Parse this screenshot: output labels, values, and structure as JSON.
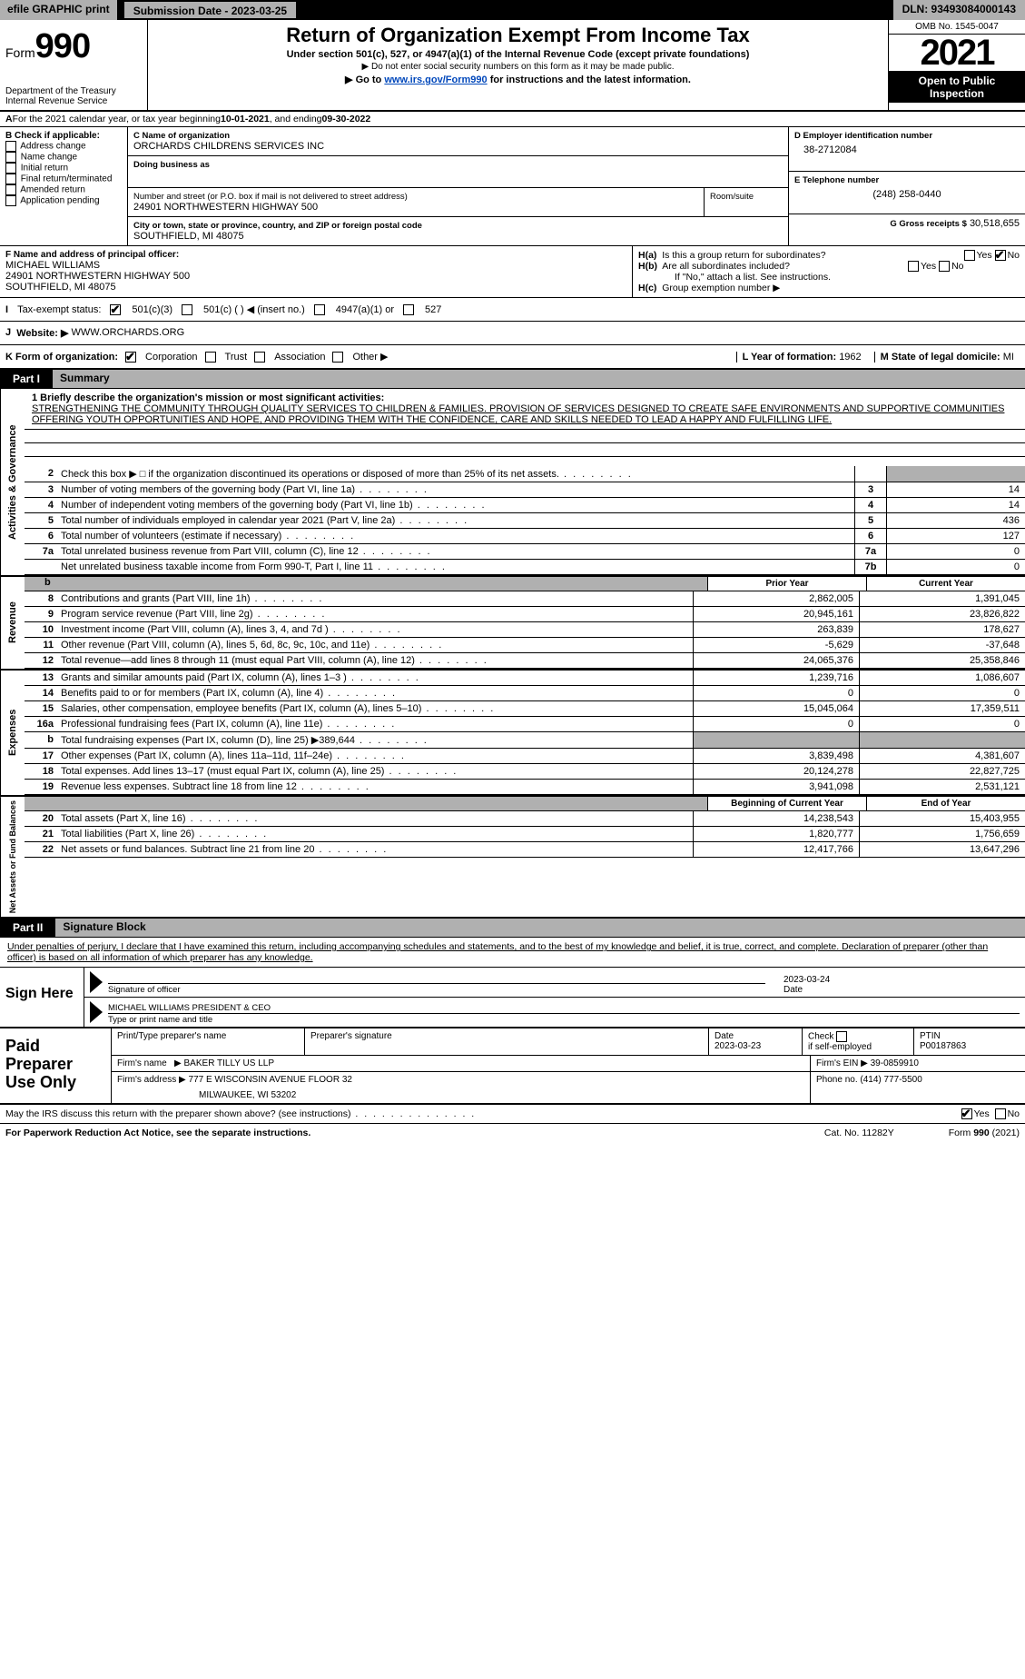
{
  "topbar": {
    "efile": "efile GRAPHIC print",
    "submit": "Submission Date - 2023-03-25",
    "dln": "DLN: 93493084000143"
  },
  "header": {
    "form_prefix": "Form",
    "form_number": "990",
    "title": "Return of Organization Exempt From Income Tax",
    "sub1_a": "Under section 501(c), 527, or 4947(a)(1) of the Internal Revenue Code (except private foundations)",
    "sub2": "▶ Do not enter social security numbers on this form as it may be made public.",
    "sub3_pre": "▶ Go to ",
    "sub3_link": "www.irs.gov/Form990",
    "sub3_post": " for instructions and the latest information.",
    "dept1": "Department of the Treasury",
    "dept2": "Internal Revenue Service",
    "omb": "OMB No. 1545-0047",
    "year": "2021",
    "inspection_a": "Open to Public",
    "inspection_b": "Inspection"
  },
  "row_a": {
    "prefix_bold": "A",
    "text": " For the 2021 calendar year, or tax year beginning ",
    "date1": "10-01-2021",
    "mid": "    , and ending ",
    "date2": "09-30-2022"
  },
  "b": {
    "title": "B Check if applicable:",
    "items": [
      "Address change",
      "Name change",
      "Initial return",
      "Final return/terminated",
      "Amended return",
      "Application pending"
    ]
  },
  "c": {
    "lbl_c": "C Name of organization",
    "org": "ORCHARDS CHILDRENS SERVICES INC",
    "dba_lbl": "Doing business as",
    "dba": "",
    "addr_lbl": "Number and street (or P.O. box if mail is not delivered to street address)",
    "room_lbl": "Room/suite",
    "addr": "24901 NORTHWESTERN HIGHWAY 500",
    "city_lbl": "City or town, state or province, country, and ZIP or foreign postal code",
    "city": "SOUTHFIELD, MI  48075"
  },
  "d": {
    "lbl": "D Employer identification number",
    "val": "38-2712084"
  },
  "e": {
    "lbl": "E Telephone number",
    "val": "(248) 258-0440"
  },
  "g": {
    "lbl": "G Gross receipts $",
    "val": "30,518,655"
  },
  "f": {
    "lbl": "F Name and address of principal officer:",
    "name": "MICHAEL WILLIAMS",
    "addr1": "24901 NORTHWESTERN HIGHWAY 500",
    "addr2": "SOUTHFIELD, MI  48075"
  },
  "h": {
    "a_q": "Is this a group return for subordinates?",
    "a_pre": "H(a)",
    "b_pre": "H(b)",
    "b_q": "Are all subordinates included?",
    "note": "If \"No,\" attach a list. See instructions.",
    "c_pre": "H(c)",
    "c_q": "Group exemption number ▶"
  },
  "tax": {
    "lbl": "Tax-exempt status:",
    "o1": "501(c)(3)",
    "o2": "501(c) (   ) ◀ (insert no.)",
    "o3": "4947(a)(1) or",
    "o4": "527"
  },
  "j": {
    "lbl": "Website: ▶",
    "val": "WWW.ORCHARDS.ORG"
  },
  "k": {
    "lbl": "K Form of organization:",
    "o1": "Corporation",
    "o2": "Trust",
    "o3": "Association",
    "o4": "Other ▶",
    "l_lbl": "L Year of formation:",
    "l_val": "1962",
    "m_lbl": "M State of legal domicile:",
    "m_val": "MI"
  },
  "part1": {
    "label": "Part I",
    "title": "Summary"
  },
  "side_labels": {
    "gov": "Activities & Governance",
    "rev": "Revenue",
    "exp": "Expenses",
    "net": "Net Assets or Fund Balances"
  },
  "mission": {
    "lbl": "1  Briefly describe the organization's mission or most significant activities:",
    "text": "STRENGTHENING THE COMMUNITY THROUGH QUALITY SERVICES TO CHILDREN & FAMILIES. PROVISION OF SERVICES DESIGNED TO CREATE SAFE ENVIRONMENTS AND SUPPORTIVE COMMUNITIES OFFERING YOUTH OPPORTUNITIES AND HOPE, AND PROVIDING THEM WITH THE CONFIDENCE, CARE AND SKILLS NEEDED TO LEAD A HAPPY AND FULFILLING LIFE."
  },
  "gov_lines": [
    {
      "n": "2",
      "d": "Check this box ▶ □ if the organization discontinued its operations or disposed of more than 25% of its net assets.",
      "cn": "",
      "cv": "",
      "shade": true
    },
    {
      "n": "3",
      "d": "Number of voting members of the governing body (Part VI, line 1a)",
      "cn": "3",
      "cv": "14"
    },
    {
      "n": "4",
      "d": "Number of independent voting members of the governing body (Part VI, line 1b)",
      "cn": "4",
      "cv": "14"
    },
    {
      "n": "5",
      "d": "Total number of individuals employed in calendar year 2021 (Part V, line 2a)",
      "cn": "5",
      "cv": "436"
    },
    {
      "n": "6",
      "d": "Total number of volunteers (estimate if necessary)",
      "cn": "6",
      "cv": "127"
    },
    {
      "n": "7a",
      "d": "Total unrelated business revenue from Part VIII, column (C), line 12",
      "cn": "7a",
      "cv": "0"
    },
    {
      "n": "",
      "d": "Net unrelated business taxable income from Form 990-T, Part I, line 11",
      "cn": "7b",
      "cv": "0"
    }
  ],
  "col_headers": {
    "prior": "Prior Year",
    "current": "Current Year",
    "begin": "Beginning of Current Year",
    "end": "End of Year"
  },
  "rev_lines": [
    {
      "n": "8",
      "d": "Contributions and grants (Part VIII, line 1h)",
      "p": "2,862,005",
      "c": "1,391,045"
    },
    {
      "n": "9",
      "d": "Program service revenue (Part VIII, line 2g)",
      "p": "20,945,161",
      "c": "23,826,822"
    },
    {
      "n": "10",
      "d": "Investment income (Part VIII, column (A), lines 3, 4, and 7d )",
      "p": "263,839",
      "c": "178,627"
    },
    {
      "n": "11",
      "d": "Other revenue (Part VIII, column (A), lines 5, 6d, 8c, 9c, 10c, and 11e)",
      "p": "-5,629",
      "c": "-37,648"
    },
    {
      "n": "12",
      "d": "Total revenue—add lines 8 through 11 (must equal Part VIII, column (A), line 12)",
      "p": "24,065,376",
      "c": "25,358,846"
    }
  ],
  "exp_lines": [
    {
      "n": "13",
      "d": "Grants and similar amounts paid (Part IX, column (A), lines 1–3 )",
      "p": "1,239,716",
      "c": "1,086,607"
    },
    {
      "n": "14",
      "d": "Benefits paid to or for members (Part IX, column (A), line 4)",
      "p": "0",
      "c": "0"
    },
    {
      "n": "15",
      "d": "Salaries, other compensation, employee benefits (Part IX, column (A), lines 5–10)",
      "p": "15,045,064",
      "c": "17,359,511"
    },
    {
      "n": "16a",
      "d": "Professional fundraising fees (Part IX, column (A), line 11e)",
      "p": "0",
      "c": "0"
    },
    {
      "n": "b",
      "d": "Total fundraising expenses (Part IX, column (D), line 25) ▶389,644",
      "p": "",
      "c": "",
      "shade": true
    },
    {
      "n": "17",
      "d": "Other expenses (Part IX, column (A), lines 11a–11d, 11f–24e)",
      "p": "3,839,498",
      "c": "4,381,607"
    },
    {
      "n": "18",
      "d": "Total expenses. Add lines 13–17 (must equal Part IX, column (A), line 25)",
      "p": "20,124,278",
      "c": "22,827,725"
    },
    {
      "n": "19",
      "d": "Revenue less expenses. Subtract line 18 from line 12",
      "p": "3,941,098",
      "c": "2,531,121"
    }
  ],
  "net_lines": [
    {
      "n": "20",
      "d": "Total assets (Part X, line 16)",
      "p": "14,238,543",
      "c": "15,403,955"
    },
    {
      "n": "21",
      "d": "Total liabilities (Part X, line 26)",
      "p": "1,820,777",
      "c": "1,756,659"
    },
    {
      "n": "22",
      "d": "Net assets or fund balances. Subtract line 21 from line 20",
      "p": "12,417,766",
      "c": "13,647,296"
    }
  ],
  "part2": {
    "label": "Part II",
    "title": "Signature Block"
  },
  "sig_text": "Under penalties of perjury, I declare that I have examined this return, including accompanying schedules and statements, and to the best of my knowledge and belief, it is true, correct, and complete. Declaration of preparer (other than officer) is based on all information of which preparer has any knowledge.",
  "sign": {
    "here": "Sign Here",
    "sig_lbl": "Signature of officer",
    "date_lbl": "Date",
    "date_val": "2023-03-24",
    "name": "MICHAEL WILLIAMS  PRESIDENT & CEO",
    "name_lbl": "Type or print name and title"
  },
  "paid": {
    "title": "Paid Preparer Use Only",
    "r1": {
      "c1": "Print/Type preparer's name",
      "c2": "Preparer's signature",
      "c3": "Date",
      "c3v": "2023-03-23",
      "c4a": "Check",
      "c4b": "if self-employed",
      "c5": "PTIN",
      "c5v": "P00187863"
    },
    "r2": {
      "c1": "Firm's name",
      "c1v": "▶  BAKER TILLY US LLP",
      "c2": "Firm's EIN ▶",
      "c2v": "39-0859910"
    },
    "r3": {
      "c1": "Firm's address ▶",
      "c1v": "777 E WISCONSIN AVENUE FLOOR 32",
      "c1v2": "MILWAUKEE, WI  53202",
      "c2": "Phone no.",
      "c2v": "(414) 777-5500"
    }
  },
  "footer": {
    "q": "May the IRS discuss this return with the preparer shown above? (see instructions)",
    "paperwork": "For Paperwork Reduction Act Notice, see the separate instructions.",
    "cat": "Cat. No. 11282Y",
    "form": "Form 990 (2021)"
  },
  "labels": {
    "i": "I",
    "j": "J",
    "b_hdr": "b",
    "yes": "Yes",
    "no": "No"
  }
}
